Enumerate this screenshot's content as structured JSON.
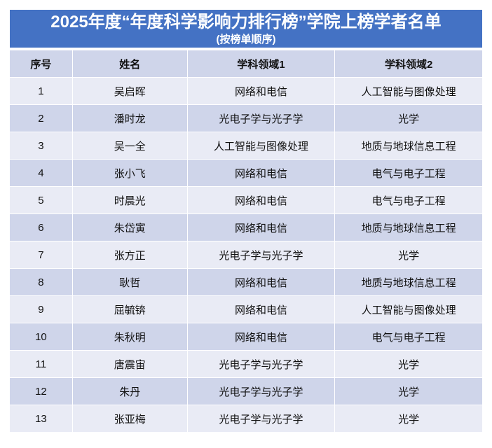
{
  "title": "2025年度“年度科学影响力排行榜”学院上榜学者名单",
  "subtitle": "(按榜单顺序)",
  "columns": [
    "序号",
    "姓名",
    "学科领域1",
    "学科领域2"
  ],
  "rows": [
    [
      "1",
      "吴启晖",
      "网络和电信",
      "人工智能与图像处理"
    ],
    [
      "2",
      "潘时龙",
      "光电子学与光子学",
      "光学"
    ],
    [
      "3",
      "吴一全",
      "人工智能与图像处理",
      "地质与地球信息工程"
    ],
    [
      "4",
      "张小飞",
      "网络和电信",
      "电气与电子工程"
    ],
    [
      "5",
      "时晨光",
      "网络和电信",
      "电气与电子工程"
    ],
    [
      "6",
      "朱岱寅",
      "网络和电信",
      "地质与地球信息工程"
    ],
    [
      "7",
      "张方正",
      "光电子学与光子学",
      "光学"
    ],
    [
      "8",
      "耿哲",
      "网络和电信",
      "地质与地球信息工程"
    ],
    [
      "9",
      "屈毓锛",
      "网络和电信",
      "人工智能与图像处理"
    ],
    [
      "10",
      "朱秋明",
      "网络和电信",
      "电气与电子工程"
    ],
    [
      "11",
      "唐震宙",
      "光电子学与光子学",
      "光学"
    ],
    [
      "12",
      "朱丹",
      "光电子学与光子学",
      "光学"
    ],
    [
      "13",
      "张亚梅",
      "光电子学与光子学",
      "光学"
    ]
  ],
  "colors": {
    "title_bg": "#4472c4",
    "header_bg": "#cfd5ea",
    "row_light": "#e9ebf5",
    "row_dark": "#cfd5ea"
  }
}
